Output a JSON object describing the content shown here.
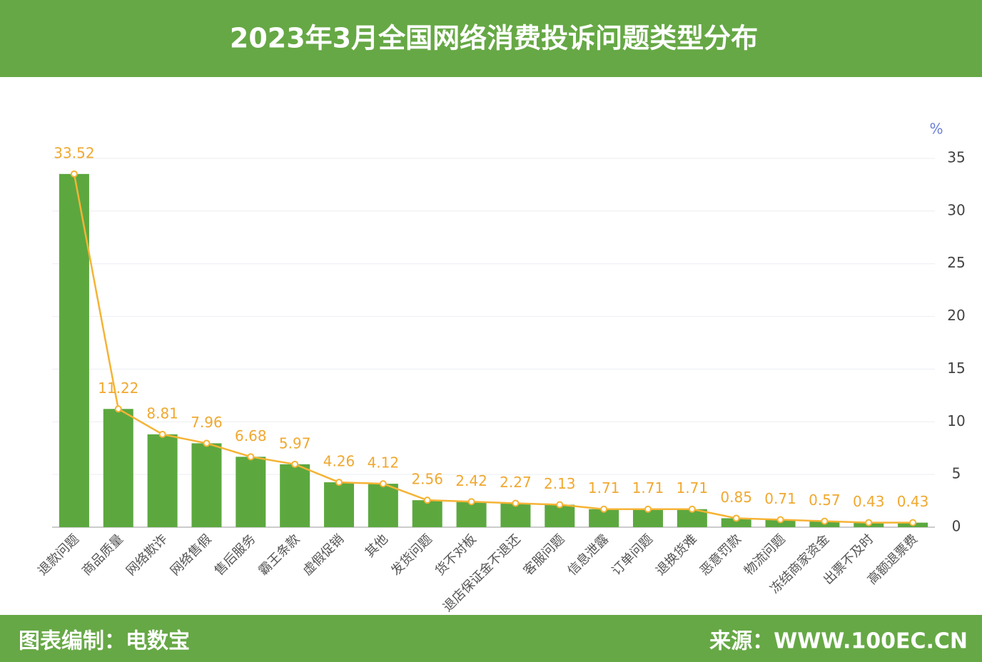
{
  "chart_data": {
    "type": "bar_line",
    "title": "2023年3月全国网络消费投诉问题类型分布",
    "y_unit": "%",
    "categories": [
      "退款问题",
      "商品质量",
      "网络欺诈",
      "网络售假",
      "售后服务",
      "霸王条款",
      "虚假促销",
      "其他",
      "发货问题",
      "货不对板",
      "退店保证金不退还",
      "客服问题",
      "信息泄露",
      "订单问题",
      "退换货难",
      "恶意罚款",
      "物流问题",
      "冻结商家资金",
      "出票不及时",
      "高额退票费"
    ],
    "values": [
      33.52,
      11.22,
      8.81,
      7.96,
      6.68,
      5.97,
      4.26,
      4.12,
      2.56,
      2.42,
      2.27,
      2.13,
      1.71,
      1.71,
      1.71,
      0.85,
      0.71,
      0.57,
      0.43,
      0.43
    ],
    "bar_color": "#5ca83f",
    "line_color": "#f5b335",
    "ylim": [
      0,
      35
    ],
    "yticks": [
      0,
      5,
      10,
      15,
      20,
      25,
      30,
      35
    ],
    "grid": true
  },
  "footer": {
    "left": "图表编制：电数宝",
    "right": "来源：WWW.100EC.CN"
  }
}
